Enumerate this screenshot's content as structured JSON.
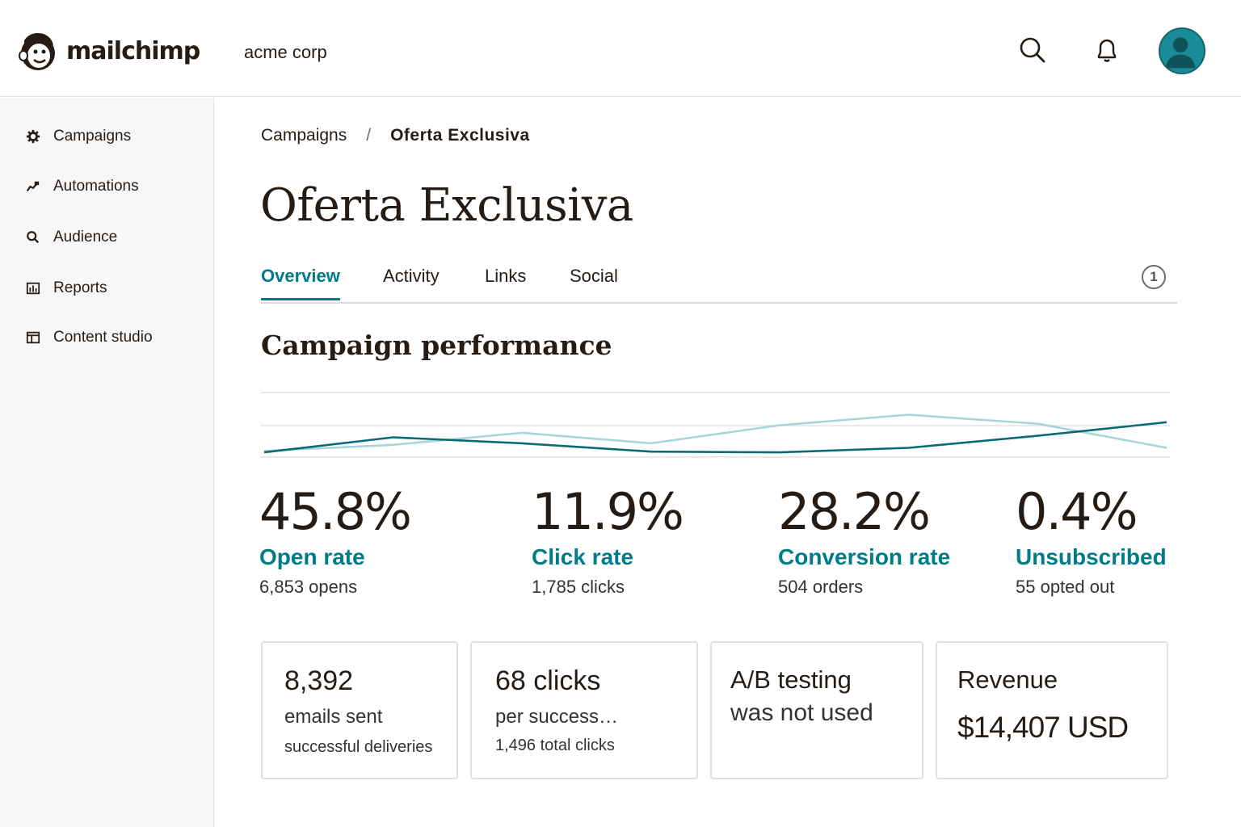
{
  "app": {
    "name": "mailchimp",
    "org": "acme corp"
  },
  "header": {
    "icons": [
      "search-icon",
      "bell-icon",
      "avatar"
    ]
  },
  "sidebar": {
    "items": [
      {
        "label": "Campaigns",
        "icon": "gear-icon"
      },
      {
        "label": "Automations",
        "icon": "automation-icon"
      },
      {
        "label": "Audience",
        "icon": "search-icon"
      },
      {
        "label": "Reports",
        "icon": "bar-chart-icon"
      },
      {
        "label": "Content studio",
        "icon": "layout-icon"
      }
    ]
  },
  "breadcrumb": {
    "parent": "Campaigns",
    "separator": "/",
    "current": "Oferta Exclusiva"
  },
  "page": {
    "title": "Oferta Exclusiva"
  },
  "tabs": [
    {
      "label": "Overview",
      "active": true
    },
    {
      "label": "Activity"
    },
    {
      "label": "Links"
    },
    {
      "label": "Social"
    }
  ],
  "tabs_info": {
    "icon": "info-icon",
    "label": "1"
  },
  "section": {
    "title": "Campaign performance"
  },
  "chart_data": {
    "type": "line",
    "x": [
      0,
      1,
      2,
      3,
      4,
      5,
      6,
      7
    ],
    "series": [
      {
        "values": [
          2,
          22,
          14,
          3,
          2,
          8,
          24,
          42
        ],
        "color": "#0b6b74"
      },
      {
        "values": [
          4,
          12,
          28,
          14,
          38,
          52,
          40,
          8
        ],
        "color": "#a7d5d8"
      }
    ],
    "grid": true,
    "legend": "none",
    "ylim": [
      0,
      60
    ]
  },
  "stats": [
    {
      "value": "45.8%",
      "label": "Open rate",
      "sub": "6,853 opens"
    },
    {
      "value": "11.9%",
      "label": "Click rate",
      "sub": "1,785 clicks"
    },
    {
      "value": "28.2%",
      "label": "Conversion rate",
      "sub": "504 orders"
    },
    {
      "value": "0.4%",
      "label": "Unsubscribed",
      "sub": "55 opted out"
    }
  ],
  "cards": [
    {
      "line1": "8,392",
      "line2": "emails sent",
      "line3": "successful deliveries"
    },
    {
      "line1": "68 clicks",
      "line2": "per success…",
      "line3": "1,496 total clicks"
    },
    {
      "line1": "A/B testing",
      "line2": "was not used"
    },
    {
      "line1": "Revenue",
      "line2": "$14,407 USD"
    }
  ],
  "colors": {
    "accent": "#007c89",
    "text": "#241c15",
    "avatar": "#1a8c99"
  }
}
